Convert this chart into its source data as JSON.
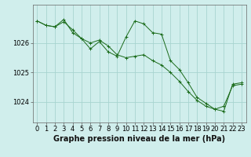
{
  "title": "Graphe pression niveau de la mer (hPa)",
  "background_color": "#d0eeec",
  "line_color": "#1a6b1a",
  "grid_color": "#a8d4d0",
  "xlim": [
    -0.5,
    23.5
  ],
  "ylim": [
    1023.3,
    1027.3
  ],
  "yticks": [
    1024,
    1025,
    1026
  ],
  "xticks": [
    0,
    1,
    2,
    3,
    4,
    5,
    6,
    7,
    8,
    9,
    10,
    11,
    12,
    13,
    14,
    15,
    16,
    17,
    18,
    19,
    20,
    21,
    22,
    23
  ],
  "series1": {
    "x": [
      0,
      1,
      2,
      3,
      4,
      5,
      6,
      7,
      8,
      9,
      10,
      11,
      12,
      13,
      14,
      15,
      16,
      17,
      18,
      19,
      20,
      21,
      22,
      23
    ],
    "y": [
      1026.75,
      1026.6,
      1026.55,
      1026.72,
      1026.45,
      1026.15,
      1026.0,
      1026.1,
      1025.9,
      1025.6,
      1025.5,
      1025.55,
      1025.6,
      1025.4,
      1025.25,
      1025.0,
      1024.7,
      1024.35,
      1024.05,
      1023.85,
      1023.75,
      1023.85,
      1024.55,
      1024.6
    ]
  },
  "series2": {
    "x": [
      0,
      1,
      2,
      3,
      4,
      5,
      6,
      7,
      8,
      9,
      10,
      11,
      12,
      13,
      14,
      15,
      16,
      17,
      18,
      19,
      20,
      21,
      22,
      23
    ],
    "y": [
      1026.75,
      1026.6,
      1026.55,
      1026.8,
      1026.35,
      1026.15,
      1025.8,
      1026.05,
      1025.7,
      1025.55,
      1026.2,
      1026.75,
      1026.65,
      1026.35,
      1026.3,
      1025.4,
      1025.1,
      1024.65,
      1024.15,
      1023.95,
      1023.75,
      1023.68,
      1024.6,
      1024.65
    ]
  },
  "title_fontsize": 7,
  "tick_fontsize": 6
}
